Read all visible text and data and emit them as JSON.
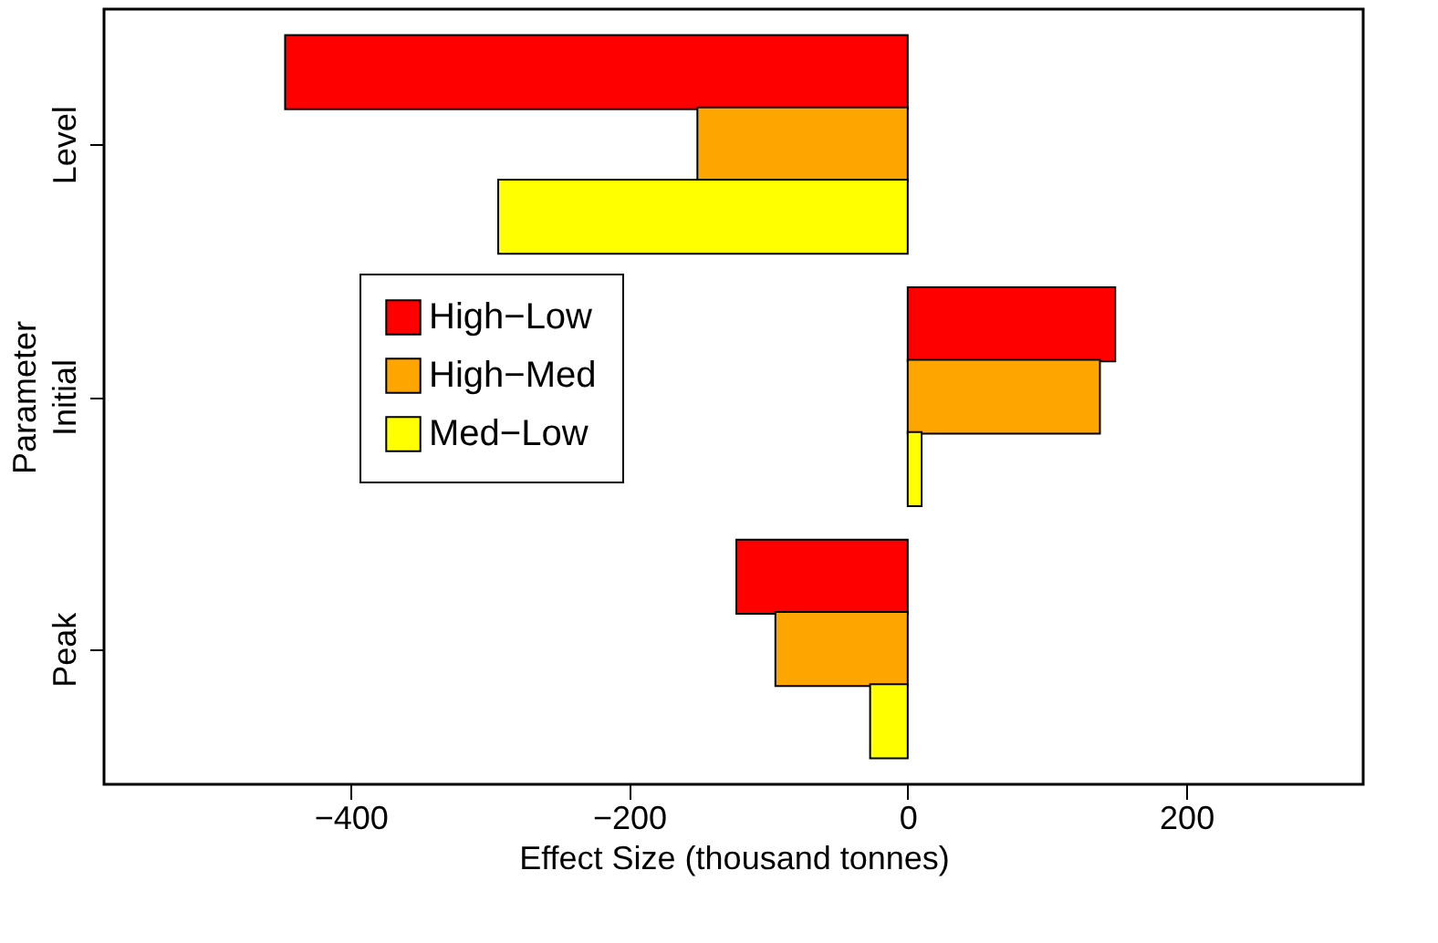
{
  "chart_data": {
    "type": "bar",
    "orientation": "horizontal",
    "xlabel": "Effect Size (thousand tonnes)",
    "ylabel": "Parameter",
    "categories": [
      "Level",
      "Initial",
      "Peak"
    ],
    "series": [
      {
        "name": "High−Low",
        "color": "#ff0000",
        "values": [
          -447,
          149,
          -123
        ]
      },
      {
        "name": "High−Med",
        "color": "#ffa500",
        "values": [
          -151,
          138,
          -95
        ]
      },
      {
        "name": "Med−Low",
        "color": "#ffff00",
        "values": [
          -294,
          10,
          -27
        ]
      }
    ],
    "xlim": [
      -577,
      327
    ],
    "xticks": [
      -400,
      -200,
      0,
      200
    ],
    "grid": false,
    "legend": "left"
  }
}
